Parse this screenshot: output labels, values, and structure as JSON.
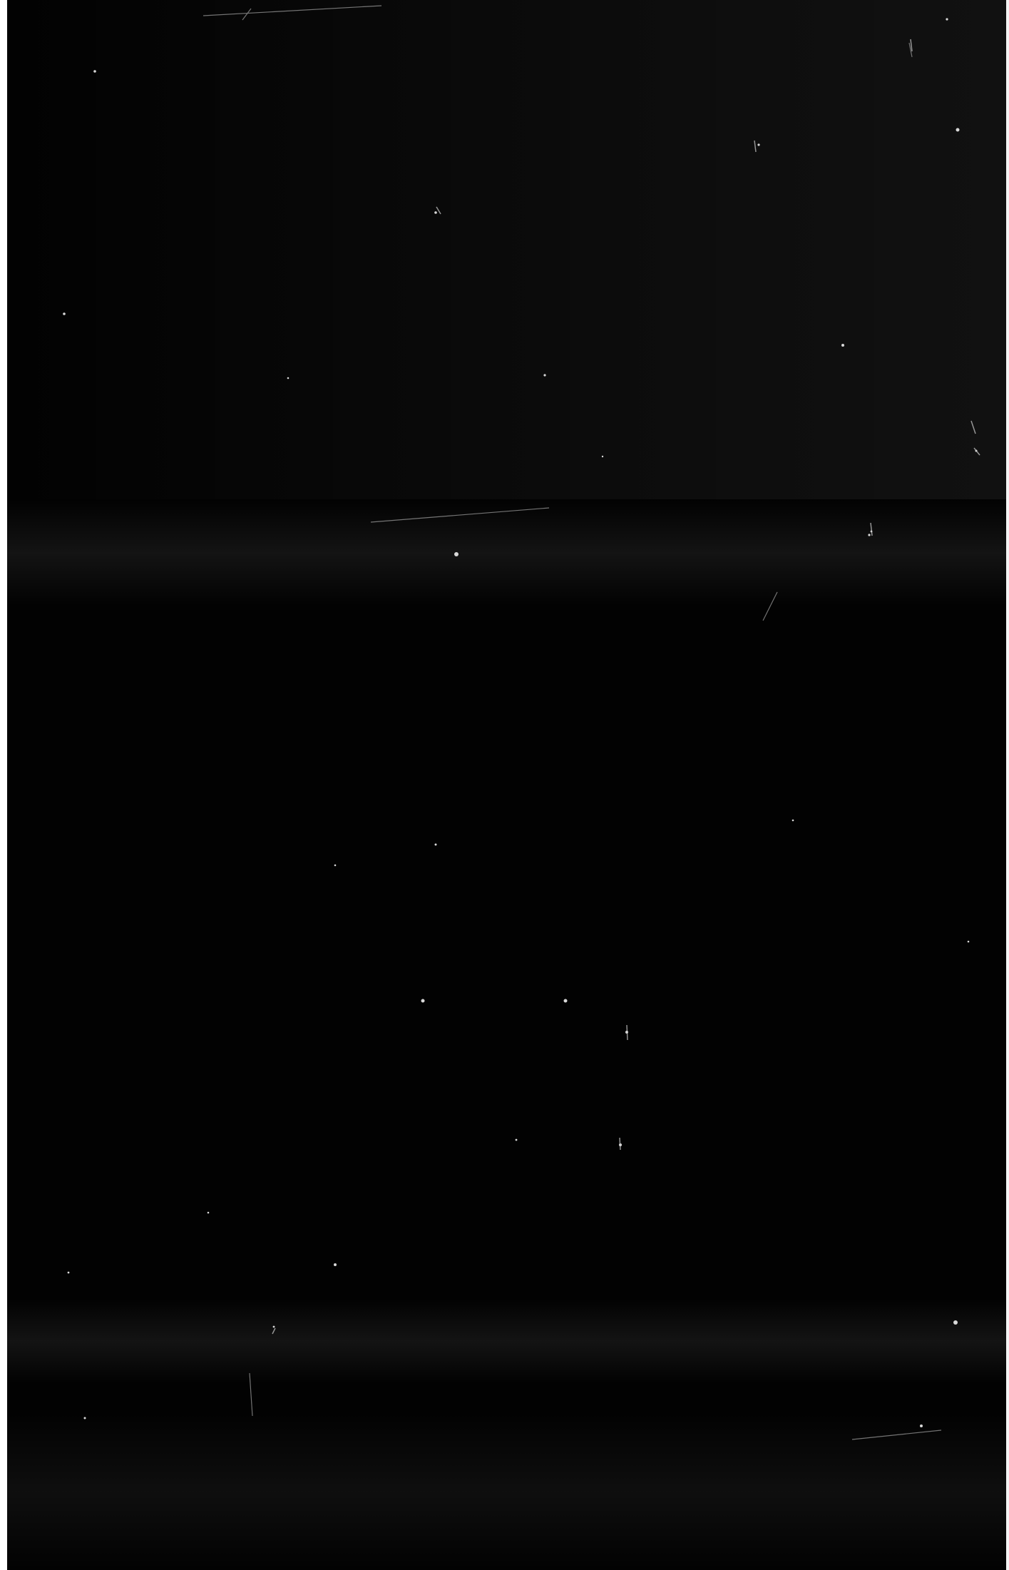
{
  "colors": {
    "film_base": "#020202",
    "haze_band": "#1c1c1c",
    "dust": "#d8d8d8",
    "scratch": "#9a9a9a",
    "edge": "#ffffff"
  }
}
